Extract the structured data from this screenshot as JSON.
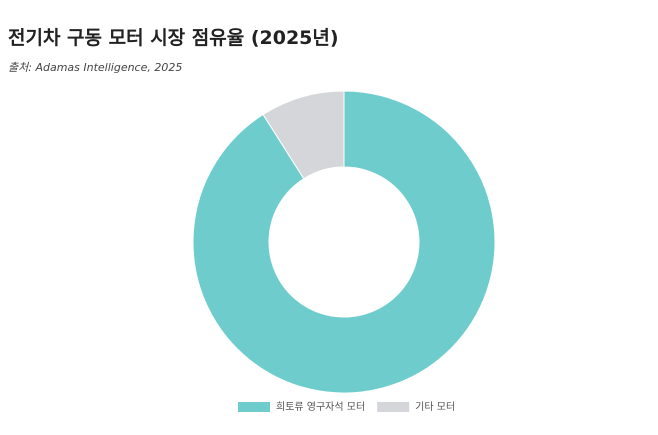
{
  "chart_data": {
    "type": "doughnut",
    "title": "전기차 구동 모터 시장 점유율 (2025년)",
    "subtitle": "출처: Adamas Intelligence, 2025",
    "categories": [
      "희토류 영구자석 모터",
      "기타 모터"
    ],
    "values": [
      91,
      9
    ],
    "colors": [
      "#6ecdcc",
      "#d5d6da"
    ],
    "legend": "bottom"
  }
}
